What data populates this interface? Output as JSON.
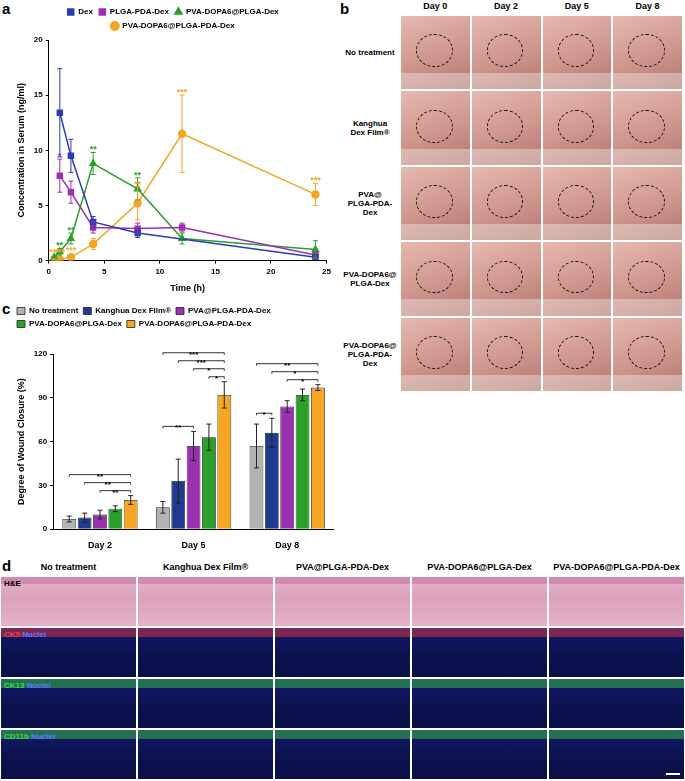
{
  "chart_data": [
    {
      "panel": "a",
      "type": "line",
      "x_label": "Time (h)",
      "y_label": "Concentration in Serum (ng/ml)",
      "xlim": [
        0,
        25
      ],
      "xticks": [
        0,
        5,
        10,
        15,
        20,
        25
      ],
      "ylim": [
        0,
        20
      ],
      "yticks": [
        0,
        5,
        10,
        15,
        20
      ],
      "grid": false,
      "legend": "top",
      "series": [
        {
          "name": "Dex",
          "color": "#2a3cb5",
          "marker": "square",
          "x": [
            1,
            2,
            4,
            8,
            24
          ],
          "values": [
            13.4,
            9.5,
            3.5,
            2.5,
            0.3
          ],
          "errors": [
            4.0,
            1.5,
            0.5,
            0.4,
            0.1
          ]
        },
        {
          "name": "PLGA-PDA-Dex",
          "color": "#9b30b0",
          "marker": "square",
          "x": [
            1,
            2,
            4,
            8,
            12,
            24
          ],
          "values": [
            7.7,
            6.2,
            3.0,
            2.9,
            3.0,
            0.5
          ],
          "errors": [
            1.5,
            1.0,
            0.5,
            0.5,
            0.4,
            0.2
          ],
          "annotations": [
            "*",
            null,
            null,
            null,
            null,
            null
          ]
        },
        {
          "name": "PVA-DOPA6@PLGA-Dex",
          "color": "#2ca02c",
          "marker": "triangle",
          "x": [
            0.5,
            1,
            2,
            4,
            8,
            12,
            24
          ],
          "values": [
            0.3,
            0.8,
            2.0,
            8.8,
            6.5,
            2.0,
            1.0
          ],
          "errors": [
            0.1,
            0.3,
            0.5,
            1.0,
            1.0,
            0.5,
            0.8
          ],
          "annotations": [
            null,
            "**",
            "**",
            "**",
            "**",
            null,
            null
          ]
        },
        {
          "name": "PVA-DOPA6@PLGA-PDA-Dex",
          "color": "#f5a623",
          "marker": "circle",
          "x": [
            0.5,
            1,
            2,
            4,
            8,
            12,
            24
          ],
          "values": [
            0.1,
            0.1,
            0.3,
            1.5,
            5.2,
            11.5,
            6.0
          ],
          "errors": [
            0.05,
            0.05,
            0.1,
            0.5,
            1.5,
            3.5,
            1.0
          ],
          "annotations": [
            "***",
            "***",
            "***",
            null,
            "**",
            "***",
            "***"
          ]
        }
      ]
    },
    {
      "panel": "c",
      "type": "bar",
      "y_label": "Degree of Wound Closure (%)",
      "categories": [
        "Day 2",
        "Day 5",
        "Day 8"
      ],
      "ylim": [
        0,
        120
      ],
      "yticks": [
        0,
        30,
        60,
        90,
        120
      ],
      "grid": false,
      "legend": "top",
      "series": [
        {
          "name": "No treatment",
          "color": "#b3b3b3",
          "values": [
            7,
            15,
            57
          ],
          "errors": [
            2,
            4,
            15
          ]
        },
        {
          "name": "Kanghua Dex Film®",
          "color": "#1f3a8f",
          "values": [
            8,
            33,
            66
          ],
          "errors": [
            3,
            15,
            10
          ]
        },
        {
          "name": "PVA@PLGA-PDA-Dex",
          "color": "#9b30b0",
          "values": [
            10,
            57,
            84
          ],
          "errors": [
            3,
            10,
            4
          ]
        },
        {
          "name": "PVA-DOPA6@PLGA-Dex",
          "color": "#2ca02c",
          "values": [
            14,
            63,
            92
          ],
          "errors": [
            2,
            9,
            4
          ]
        },
        {
          "name": "PVA-DOPA6@PLGA-PDA-Dex",
          "color": "#f5a623",
          "values": [
            20,
            92,
            97
          ],
          "errors": [
            3,
            9,
            2
          ]
        }
      ],
      "significance": [
        {
          "category": "Day 2",
          "between": [
            "PVA@PLGA-PDA-Dex",
            "PVA-DOPA6@PLGA-PDA-Dex"
          ],
          "text": "**"
        },
        {
          "category": "Day 2",
          "between": [
            "Kanghua Dex Film®",
            "PVA-DOPA6@PLGA-PDA-Dex"
          ],
          "text": "**"
        },
        {
          "category": "Day 2",
          "between": [
            "No treatment",
            "PVA-DOPA6@PLGA-PDA-Dex"
          ],
          "text": "**"
        },
        {
          "category": "Day 5",
          "between": [
            "PVA-DOPA6@PLGA-Dex",
            "PVA-DOPA6@PLGA-PDA-Dex"
          ],
          "text": "*"
        },
        {
          "category": "Day 5",
          "between": [
            "No treatment",
            "PVA@PLGA-PDA-Dex"
          ],
          "text": "**"
        },
        {
          "category": "Day 5",
          "between": [
            "PVA@PLGA-PDA-Dex",
            "PVA-DOPA6@PLGA-PDA-Dex"
          ],
          "text": "*"
        },
        {
          "category": "Day 5",
          "between": [
            "Kanghua Dex Film®",
            "PVA-DOPA6@PLGA-PDA-Dex"
          ],
          "text": "***"
        },
        {
          "category": "Day 5",
          "between": [
            "No treatment",
            "PVA-DOPA6@PLGA-PDA-Dex"
          ],
          "text": "***"
        },
        {
          "category": "Day 8",
          "between": [
            "No treatment",
            "Kanghua Dex Film®"
          ],
          "text": "*"
        },
        {
          "category": "Day 8",
          "between": [
            "PVA@PLGA-PDA-Dex",
            "PVA-DOPA6@PLGA-PDA-Dex"
          ],
          "text": "*"
        },
        {
          "category": "Day 8",
          "between": [
            "Kanghua Dex Film®",
            "PVA-DOPA6@PLGA-PDA-Dex"
          ],
          "text": "*"
        },
        {
          "category": "Day 8",
          "between": [
            "No treatment",
            "PVA-DOPA6@PLGA-PDA-Dex"
          ],
          "text": "**"
        }
      ]
    }
  ],
  "panel_b": {
    "panel": "b",
    "columns": [
      "Day 0",
      "Day 2",
      "Day 5",
      "Day 8"
    ],
    "rows": [
      "No treatment",
      "Kanghua\nDex Film®",
      "PVA@\nPLGA-PDA-Dex",
      "PVA-DOPA6@\nPLGA-Dex",
      "PVA-DOPA6@\nPLGA-PDA-Dex"
    ]
  },
  "panel_d": {
    "panel": "d",
    "columns": [
      "No treatment",
      "Kanghua Dex Film®",
      "PVA@PLGA-PDA-Dex",
      "PVA-DOPA6@PLGA-Dex",
      "PVA-DOPA6@PLGA-PDA-Dex"
    ],
    "rows": [
      {
        "stain": "H&E",
        "color": "#000000"
      },
      {
        "stain": "CK5",
        "color": "#ff3b3b",
        "counterstain": "Nuclei"
      },
      {
        "stain": "CK13",
        "color": "#3ddc3d",
        "counterstain": "Nuclei"
      },
      {
        "stain": "CD11b",
        "color": "#3ddc3d",
        "counterstain": "Nuclei"
      }
    ]
  }
}
